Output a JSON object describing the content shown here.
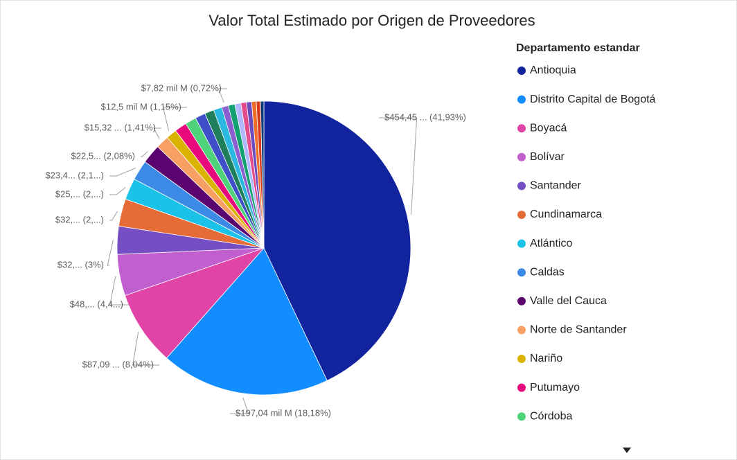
{
  "chart_data": {
    "type": "pie",
    "title": "Valor Total Estimado por Origen de Proveedores",
    "legend_title": "Departamento estandar",
    "legend": "right",
    "categories": [
      "Antioquia",
      "Distrito Capital de Bogotá",
      "Boyacá",
      "Bolívar",
      "Santander",
      "Cundinamarca",
      "Atlántico",
      "Caldas",
      "Valle del Cauca",
      "Norte de Santander",
      "Nariño",
      "Putumayo",
      "Córdoba",
      null,
      null,
      null,
      null,
      null,
      null,
      null,
      null,
      null,
      null,
      null
    ],
    "values": [
      41.93,
      18.18,
      8.04,
      4.45,
      3,
      2.96,
      2.31,
      2.16,
      2.08,
      1.41,
      1.15,
      1.3,
      1.2,
      1.1,
      1.0,
      0.9,
      0.72,
      0.7,
      0.65,
      0.6,
      0.55,
      0.5,
      0.45,
      0.36
    ],
    "value_labels": [
      "$454,45 ... (41,93%)",
      "$197,04 mil M (18,18%)",
      "$87,09 ... (8,04%)",
      "$48,... (4,4...)",
      "$32,... (3%)",
      "$32,... (2,...)",
      "$25,... (2,...)",
      "$23,4... (2,1...)",
      "$22,5... (2,08%)",
      "$15,32 ... (1,41%)",
      "$12,5 mil M (1,15%)",
      null,
      null,
      null,
      null,
      null,
      "$7,82 mil M (0,72%)",
      null,
      null,
      null,
      null,
      null,
      null,
      null
    ],
    "colors": [
      "#12239e",
      "#118dff",
      "#e044a7",
      "#c15fcf",
      "#744ec2",
      "#e66c37",
      "#1ac2e8",
      "#3b8ae6",
      "#5b0470",
      "#f8a063",
      "#d9b300",
      "#e8097c",
      "#4fd37a",
      "#3e4fc8",
      "#1f7f5c",
      "#2ab7e0",
      "#8b5fd0",
      "#12a070",
      "#b0b9ff",
      "#e34c8a",
      "#6b4bbd",
      "#f06e2a",
      "#d63c1e",
      "#0a3d7a"
    ]
  }
}
